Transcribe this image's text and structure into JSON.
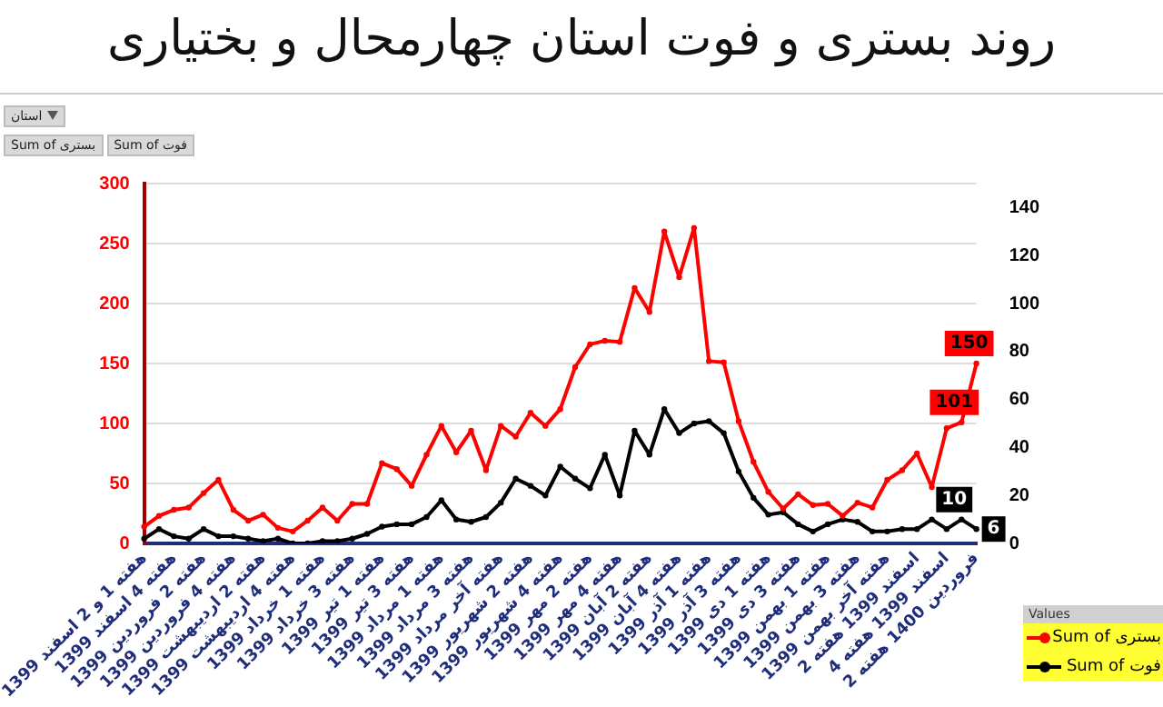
{
  "chart_data": {
    "type": "line",
    "title": "روند بستری و فوت استان چهارمحال و بختیاری",
    "annotations": [
      "استان",
      "Sum of بستری",
      "Sum of فوت"
    ],
    "legend_title": "Values",
    "categories": [
      "هفته 1 و 2 اسفند 1399",
      null,
      "هفته 4 اسفند 1399",
      null,
      "هفته 2 فروردین 1399",
      null,
      "هفته 4 فروردین 1399",
      null,
      "هفته 2 اردیبهشت 1399",
      null,
      "هفته 4 اردیبهشت 1399",
      null,
      "هفته 1 خرداد 1399",
      null,
      "هفته 3 خرداد 1399",
      null,
      "هفته 1 تیر 1399",
      null,
      "هفته 3 تیر 1399",
      null,
      "هفته 1 مرداد 1399",
      null,
      "هفته 3 مرداد 1399",
      null,
      "هفته آخر مرداد 1399",
      null,
      "هفته 2 شهریور 1399",
      null,
      "هفته 4 شهریور 1399",
      null,
      "هفته 2 مهر 1399",
      null,
      "هفته 4 مهر 1399",
      null,
      "هفته 2 آبان 1399",
      null,
      "هفته 4 آبان 1399",
      null,
      "هفته 1 آذر 1399",
      null,
      "هفته 3 آذر 1399",
      null,
      "هفته 1 دی 1399",
      null,
      "هفته 3 دی 1399",
      null,
      "هفته 1 بهمن 1399",
      null,
      "هفته 3 بهمن 1399",
      null,
      "هفته آخر بهمن 1399",
      null,
      "اسفند 1399 هفته 2",
      null,
      "اسفند 1399 هفته 4",
      null,
      "فروردین 1400 هفته 2"
    ],
    "series": [
      {
        "name": "Sum of بستری",
        "color": "#ff0000",
        "values": [
          14,
          23,
          28,
          30,
          42,
          53,
          28,
          19,
          24,
          13,
          10,
          19,
          30,
          19,
          33,
          33,
          67,
          62,
          48,
          74,
          98,
          76,
          94,
          61,
          98,
          89,
          109,
          98,
          112,
          147,
          166,
          169,
          168,
          213,
          193,
          260,
          222,
          263,
          152,
          151,
          102,
          68,
          43,
          29,
          41,
          32,
          33,
          23,
          34,
          30,
          53,
          61,
          75,
          47,
          96,
          101,
          150
        ],
        "value_labels": [
          null,
          null,
          null,
          null,
          null,
          null,
          null,
          null,
          null,
          null,
          null,
          null,
          null,
          null,
          null,
          null,
          null,
          null,
          null,
          null,
          null,
          null,
          null,
          null,
          null,
          null,
          null,
          null,
          null,
          null,
          null,
          null,
          null,
          null,
          null,
          null,
          null,
          null,
          null,
          null,
          null,
          null,
          null,
          null,
          null,
          null,
          null,
          null,
          null,
          null,
          null,
          null,
          null,
          null,
          null,
          "101",
          "150"
        ]
      },
      {
        "name": "Sum of فوت",
        "color": "#000000",
        "axis": "y2",
        "values": [
          2,
          6,
          3,
          2,
          6,
          3,
          3,
          2,
          1,
          2,
          0,
          0,
          1,
          1,
          2,
          4,
          7,
          8,
          8,
          11,
          18,
          10,
          9,
          11,
          17,
          27,
          24,
          20,
          32,
          27,
          23,
          37,
          20,
          47,
          37,
          56,
          46,
          50,
          51,
          46,
          30,
          19,
          12,
          13,
          8,
          5,
          8,
          10,
          9,
          5,
          5,
          6,
          6,
          10,
          6,
          10,
          6
        ],
        "value_labels": [
          null,
          null,
          null,
          null,
          null,
          null,
          null,
          null,
          null,
          null,
          null,
          null,
          null,
          null,
          null,
          null,
          null,
          null,
          null,
          null,
          null,
          null,
          null,
          null,
          null,
          null,
          null,
          null,
          null,
          null,
          null,
          null,
          null,
          null,
          null,
          null,
          null,
          null,
          null,
          null,
          null,
          null,
          null,
          null,
          null,
          null,
          null,
          null,
          null,
          null,
          null,
          null,
          null,
          null,
          null,
          "10",
          "6"
        ]
      }
    ],
    "ylim": [
      0,
      300
    ],
    "yticks": [
      0,
      50,
      100,
      150,
      200,
      250,
      300
    ],
    "y2lim": [
      0,
      150
    ],
    "y2ticks": [
      0,
      20,
      40,
      60,
      80,
      100,
      120,
      140
    ],
    "grid": "y",
    "legend": "bottom right",
    "marker": "circle",
    "line_style": "solid"
  }
}
